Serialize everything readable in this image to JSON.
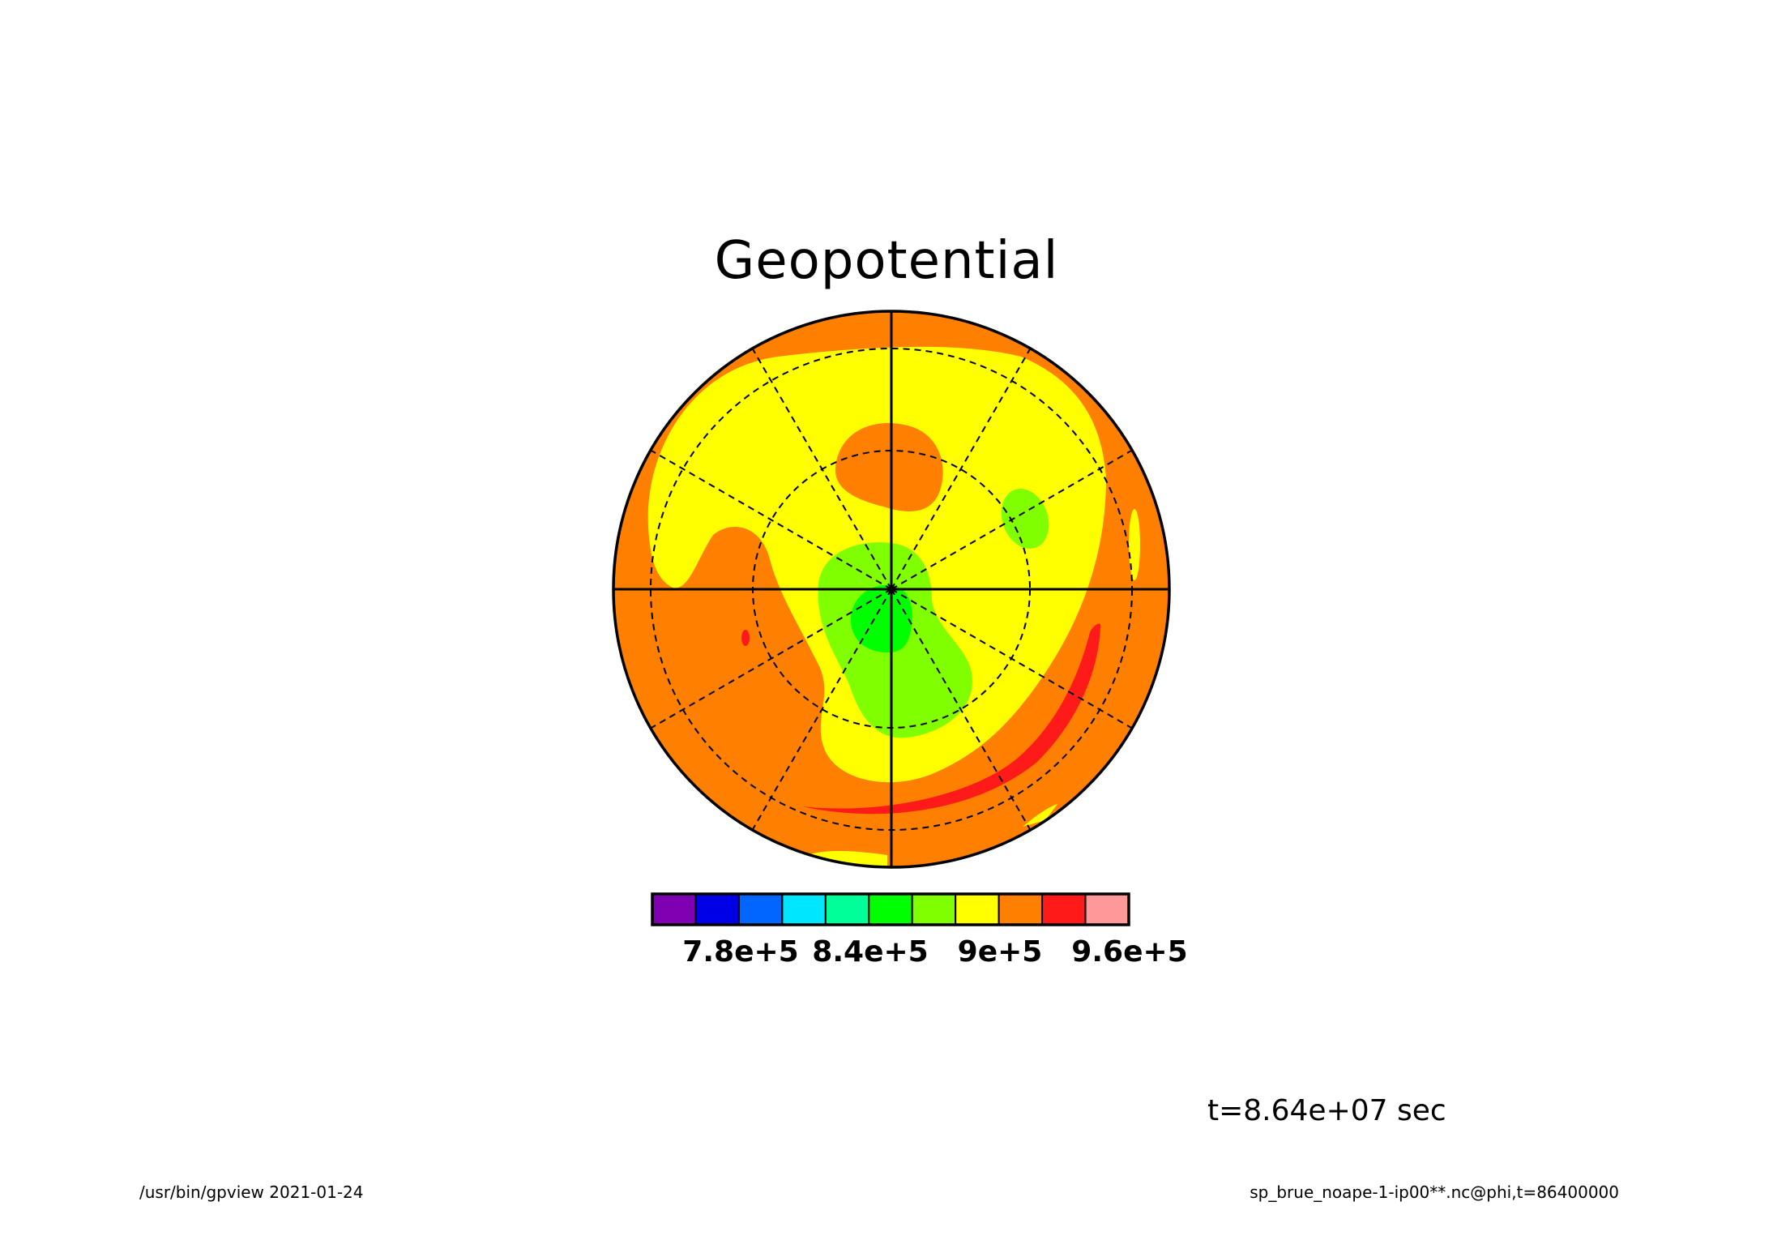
{
  "chart_data": {
    "type": "heatmap",
    "title": "Geopotential",
    "projection": "polar stereographic",
    "colorbar": {
      "colors": [
        "#7f00b2",
        "#0000e6",
        "#0066ff",
        "#00e6ff",
        "#00ff99",
        "#00ff00",
        "#7fff00",
        "#ffff00",
        "#ff7f00",
        "#ff1a1a",
        "#ff9999"
      ],
      "tick_labels": [
        "7.8e+5",
        "8.4e+5",
        "9e+5",
        "9.6e+5"
      ],
      "tick_values": [
        780000,
        840000,
        900000,
        960000
      ]
    },
    "grid": {
      "latitude_circles": "dashed",
      "meridians": "dashed",
      "axes": "solid"
    },
    "dominant_levels": [
      "#ff7f00",
      "#ffff00",
      "#7fff00",
      "#00ff00",
      "#ff1a1a"
    ]
  },
  "annotations": {
    "time": "t=8.64e+07 sec",
    "footer_left": "/usr/bin/gpview   2021-01-24",
    "footer_right": "sp_brue_noape-1-ip00**.nc@phi,t=86400000"
  }
}
